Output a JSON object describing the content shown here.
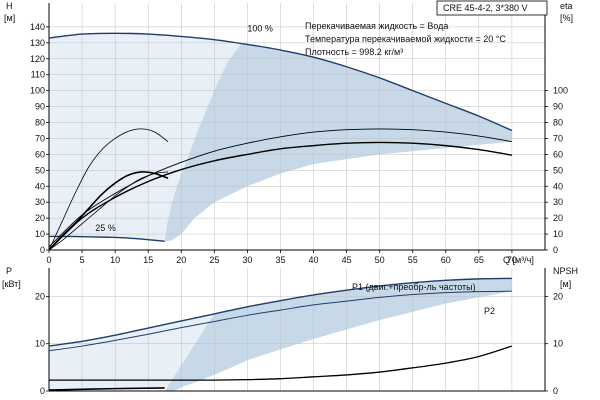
{
  "chart_data": [
    {
      "type": "line",
      "name": "head-efficiency",
      "product_label": "CRE 45-4-2, 3*380 V",
      "info_lines": [
        "Перекачиваемая жидкость = Вода",
        "Температура перекачиваемой жидкости = 20 °C",
        "Плотность = 998.2 кг/м³"
      ],
      "left_axis": {
        "label": "H",
        "unit": "[м]",
        "ticks": [
          0,
          10,
          20,
          30,
          40,
          50,
          60,
          70,
          80,
          90,
          100,
          110,
          120,
          130,
          140
        ],
        "range": [
          0,
          155
        ]
      },
      "right_axis": {
        "label": "eta",
        "unit": "[%]",
        "ticks": [
          0,
          10,
          20,
          30,
          40,
          50,
          60,
          70,
          80,
          90,
          100
        ],
        "range": [
          0,
          155
        ]
      },
      "x_axis": {
        "label": "Q [м³/ч]",
        "ticks": [
          0,
          5,
          10,
          15,
          20,
          25,
          30,
          35,
          40,
          45,
          50,
          55,
          60,
          65,
          70
        ],
        "range": [
          0,
          75
        ]
      },
      "grid": true,
      "speed_labels": [
        {
          "text": "100 %",
          "x": 30,
          "y": 137
        },
        {
          "text": "25 %",
          "x": 7,
          "y": 12
        }
      ],
      "series": [
        {
          "role": "head",
          "points": [
            [
              0,
              133
            ],
            [
              5,
              135.5
            ],
            [
              10,
              136
            ],
            [
              15,
              135.5
            ],
            [
              20,
              134
            ],
            [
              25,
              132
            ],
            [
              30,
              129
            ],
            [
              35,
              125.5
            ],
            [
              40,
              121
            ],
            [
              45,
              115
            ],
            [
              50,
              108
            ],
            [
              55,
              100
            ],
            [
              60,
              92
            ],
            [
              65,
              84
            ],
            [
              70,
              75
            ]
          ]
        },
        {
          "role": "head",
          "points": [
            [
              0,
              8.5
            ],
            [
              3,
              8.5
            ],
            [
              6,
              8.3
            ],
            [
              9,
              8
            ],
            [
              12,
              7.5
            ],
            [
              15,
              6.5
            ],
            [
              17.5,
              5.5
            ]
          ]
        },
        {
          "role": "efficiency",
          "points": [
            [
              0,
              0
            ],
            [
              5,
              20
            ],
            [
              10,
              33
            ],
            [
              15,
              43
            ],
            [
              20,
              50.5
            ],
            [
              25,
              56
            ],
            [
              30,
              60
            ],
            [
              35,
              63.5
            ],
            [
              40,
              65.5
            ],
            [
              45,
              67
            ],
            [
              50,
              67.5
            ],
            [
              55,
              67
            ],
            [
              60,
              65.5
            ],
            [
              65,
              63
            ],
            [
              70,
              59.5
            ]
          ]
        },
        {
          "role": "efficiency",
          "points": [
            [
              0,
              2
            ],
            [
              5,
              22
            ],
            [
              10,
              35.5
            ],
            [
              15,
              46.5
            ],
            [
              20,
              55
            ],
            [
              25,
              62
            ],
            [
              30,
              67
            ],
            [
              35,
              71
            ],
            [
              40,
              74
            ],
            [
              45,
              75.5
            ],
            [
              50,
              76
            ],
            [
              55,
              75.5
            ],
            [
              60,
              74
            ],
            [
              65,
              71.5
            ],
            [
              70,
              68
            ]
          ]
        },
        {
          "role": "efficiency",
          "points": [
            [
              0,
              0
            ],
            [
              2,
              9
            ],
            [
              4,
              17
            ],
            [
              6,
              26
            ],
            [
              8,
              35
            ],
            [
              10,
              42
            ],
            [
              12,
              47
            ],
            [
              14,
              49
            ],
            [
              16,
              48
            ],
            [
              18,
              45
            ]
          ]
        },
        {
          "role": "efficiency",
          "points": [
            [
              0,
              0
            ],
            [
              2,
              18
            ],
            [
              4,
              36
            ],
            [
              6,
              52
            ],
            [
              8,
              63
            ],
            [
              10,
              70
            ],
            [
              12,
              74.5
            ],
            [
              14,
              76
            ],
            [
              16,
              74
            ],
            [
              18,
              68
            ]
          ]
        },
        {
          "role": "efficiency",
          "points": [
            [
              0,
              0
            ],
            [
              2,
              6
            ],
            [
              4,
              13
            ],
            [
              6,
              20
            ],
            [
              8,
              27
            ],
            [
              10,
              34
            ],
            [
              12,
              40
            ],
            [
              14,
              45
            ],
            [
              16,
              48
            ],
            [
              18,
              49
            ]
          ]
        }
      ],
      "shaded_area_color": "#c7d9e8",
      "line_color": "#1f3d6b"
    },
    {
      "type": "line",
      "name": "power-npsh",
      "left_axis": {
        "label": "P",
        "unit": "[кВт]",
        "ticks": [
          0,
          10,
          20
        ],
        "range": [
          0,
          26
        ]
      },
      "right_axis": {
        "label": "NPSH",
        "unit": "[м]",
        "ticks": [
          0,
          10,
          20
        ],
        "range": [
          0,
          26
        ]
      },
      "x_axis": {
        "range": [
          0,
          75
        ]
      },
      "grid": true,
      "series": [
        {
          "name": "P1 (двиг.+преобр-ль частоты)",
          "points": [
            [
              0,
              9.5
            ],
            [
              5,
              10.5
            ],
            [
              10,
              11.8
            ],
            [
              15,
              13.3
            ],
            [
              20,
              14.8
            ],
            [
              25,
              16.3
            ],
            [
              30,
              17.8
            ],
            [
              35,
              19.1
            ],
            [
              40,
              20.3
            ],
            [
              45,
              21.3
            ],
            [
              50,
              22.2
            ],
            [
              55,
              22.9
            ],
            [
              60,
              23.4
            ],
            [
              65,
              23.7
            ],
            [
              70,
              23.8
            ]
          ]
        },
        {
          "name": "P2",
          "points": [
            [
              0,
              8.5
            ],
            [
              5,
              9.5
            ],
            [
              10,
              10.7
            ],
            [
              15,
              12
            ],
            [
              20,
              13.4
            ],
            [
              25,
              14.7
            ],
            [
              30,
              16
            ],
            [
              35,
              17.1
            ],
            [
              40,
              18.2
            ],
            [
              45,
              19
            ],
            [
              50,
              19.8
            ],
            [
              55,
              20.4
            ],
            [
              60,
              20.8
            ],
            [
              65,
              21
            ],
            [
              70,
              21.1
            ]
          ]
        },
        {
          "role": "npsh",
          "points": [
            [
              0,
              2.3
            ],
            [
              10,
              2.3
            ],
            [
              20,
              2.3
            ],
            [
              25,
              2.3
            ],
            [
              30,
              2.4
            ],
            [
              35,
              2.6
            ],
            [
              40,
              3
            ],
            [
              45,
              3.4
            ],
            [
              50,
              4
            ],
            [
              55,
              4.9
            ],
            [
              60,
              5.9
            ],
            [
              65,
              7.3
            ],
            [
              70,
              9.5
            ]
          ]
        },
        {
          "role": "power-low",
          "points": [
            [
              0,
              0.2
            ],
            [
              5,
              0.35
            ],
            [
              10,
              0.5
            ],
            [
              15,
              0.6
            ],
            [
              17.5,
              0.65
            ]
          ]
        }
      ],
      "shaded_area_color": "#c7d9e8",
      "line_color": "#1f3d6b"
    }
  ]
}
